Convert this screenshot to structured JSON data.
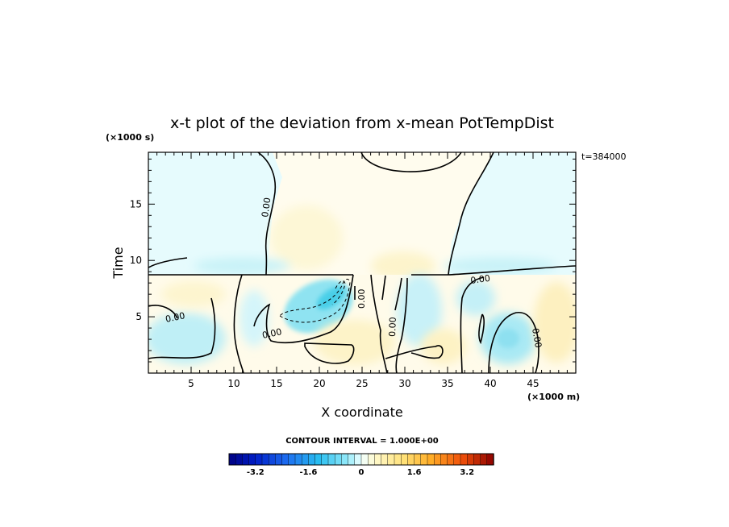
{
  "chart_data": {
    "type": "heatmap",
    "title": "x-t plot of the deviation from x-mean PotTempDist",
    "xlabel": "X coordinate",
    "ylabel": "Time",
    "x_unit": "(×1000 m)",
    "y_unit": "(×1000 s)",
    "xlim": [
      0,
      50
    ],
    "ylim": [
      0,
      19.6
    ],
    "x_ticks": [
      5,
      10,
      15,
      20,
      25,
      30,
      35,
      40,
      45
    ],
    "y_ticks": [
      5,
      10,
      15
    ],
    "time_stamp": "t=384000",
    "contour_interval": "CONTOUR INTERVAL = 1.000E+00",
    "contour_labels": [
      "0.00",
      "0.00",
      "0.00",
      "0.00",
      "0.00",
      "0.00",
      "0.00"
    ],
    "colorbar": {
      "min": -4.0,
      "max": 4.0,
      "step": 0.2,
      "tick_values": [
        -3.2,
        -1.6,
        0,
        1.6,
        3.2
      ],
      "tick_labels": [
        "-3.2",
        "-1.6",
        "0",
        "1.6",
        "3.2"
      ]
    },
    "grid": false
  }
}
